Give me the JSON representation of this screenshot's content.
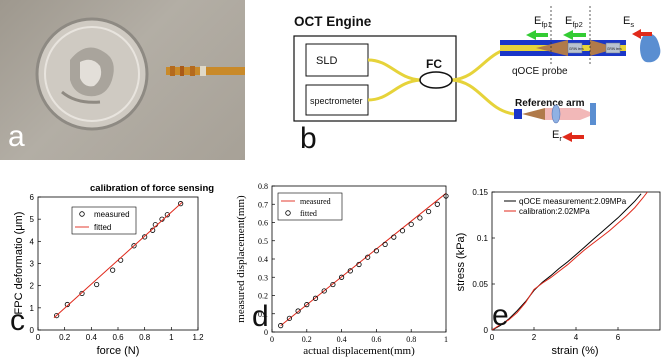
{
  "panels": {
    "a": {
      "letter": "a"
    },
    "b": {
      "letter": "b",
      "engine_title": "OCT Engine",
      "sld_label": "SLD",
      "spectrometer_label": "spectrometer",
      "coupler_label": "FC",
      "probe_label": "qOCE probe",
      "reference_label": "Reference arm",
      "field_fp1_main": "E",
      "field_fp1_sub": "fp1",
      "field_fp2_main": "E",
      "field_fp2_sub": "fp2",
      "field_s_main": "E",
      "field_s_sub": "s",
      "field_r_main": "E",
      "field_r_sub": "r",
      "grin1_label": "GRIN lens",
      "grin2_label": "GRIN lens",
      "colors": {
        "fiber": "#e6d33a",
        "probe_blue": "#1a36c8",
        "arrow_green": "#33cc33",
        "arrow_red": "#e02a1a",
        "cone": "#b07a4a",
        "sample": "#5a8ed1",
        "lens": "#8fb1e3",
        "ref_beam": "#f2b8b8"
      }
    },
    "c": {
      "letter": "c",
      "title": "calibration of force sensing"
    },
    "d": {
      "letter": "d"
    },
    "e": {
      "letter": "e"
    }
  },
  "chart_data": [
    {
      "type": "scatter",
      "title": "calibration of force sensing",
      "xlabel": "force (N)",
      "ylabel": "FPC deformatio (μm)",
      "xlim": [
        0,
        1.2
      ],
      "ylim": [
        0,
        6
      ],
      "xticks": [
        "0",
        "0.2",
        "0.4",
        "0.6",
        "0.8",
        "1",
        "1.2"
      ],
      "yticks": [
        "0",
        "1",
        "2",
        "3",
        "4",
        "5",
        "6"
      ],
      "legend_position": "top-left",
      "series": [
        {
          "name": "measured",
          "style": "marker",
          "color": "#000000",
          "x": [
            0.14,
            0.22,
            0.33,
            0.44,
            0.56,
            0.62,
            0.72,
            0.8,
            0.86,
            0.88,
            0.93,
            0.97,
            1.07
          ],
          "y": [
            0.65,
            1.15,
            1.65,
            2.05,
            2.7,
            3.15,
            3.8,
            4.2,
            4.5,
            4.75,
            5.0,
            5.2,
            5.7
          ]
        },
        {
          "name": "fitted",
          "style": "line",
          "color": "#e0291b",
          "x": [
            0.12,
            1.08
          ],
          "y": [
            0.55,
            5.75
          ]
        }
      ]
    },
    {
      "type": "scatter",
      "xlabel": "actual displacement(mm)",
      "ylabel": "measured displacement(mm)",
      "xlim": [
        0,
        1
      ],
      "ylim": [
        0,
        0.8
      ],
      "xticks": [
        "0",
        "0.2",
        "0.4",
        "0.6",
        "0.8",
        "1"
      ],
      "yticks": [
        "0",
        "0.1",
        "0.2",
        "0.3",
        "0.4",
        "0.5",
        "0.6",
        "0.7",
        "0.8"
      ],
      "legend_position": "top-left",
      "series": [
        {
          "name": "measured",
          "style": "line",
          "color": "#e0291b",
          "x": [
            0.05,
            1.0
          ],
          "y": [
            0.035,
            0.76
          ]
        },
        {
          "name": "fitted",
          "style": "marker",
          "color": "#000000",
          "x": [
            0.05,
            0.1,
            0.15,
            0.2,
            0.25,
            0.3,
            0.35,
            0.4,
            0.45,
            0.5,
            0.55,
            0.6,
            0.65,
            0.7,
            0.75,
            0.8,
            0.85,
            0.9,
            0.95,
            1.0
          ],
          "y": [
            0.035,
            0.075,
            0.115,
            0.15,
            0.185,
            0.225,
            0.26,
            0.3,
            0.335,
            0.37,
            0.41,
            0.445,
            0.48,
            0.52,
            0.555,
            0.59,
            0.625,
            0.66,
            0.7,
            0.745
          ]
        }
      ]
    },
    {
      "type": "line",
      "xlabel": "strain (%)",
      "ylabel": "stress (kPa)",
      "xlim": [
        0,
        8
      ],
      "ylim": [
        0,
        0.15
      ],
      "xticks": [
        "0",
        "2",
        "4",
        "6"
      ],
      "yticks": [
        "0",
        "0.05",
        "0.1",
        "0.15"
      ],
      "legend_position": "top-right",
      "series": [
        {
          "name": "qOCE measurement:2.09MPa",
          "color": "#000000",
          "x": [
            0,
            0.4,
            0.8,
            1.2,
            1.6,
            2.0,
            2.4,
            2.8,
            3.2,
            3.6,
            4.0,
            4.4,
            4.8,
            5.2,
            5.6,
            6.0,
            6.4,
            6.8,
            7.1
          ],
          "y": [
            0,
            0.005,
            0.012,
            0.021,
            0.031,
            0.043,
            0.052,
            0.059,
            0.067,
            0.074,
            0.082,
            0.09,
            0.098,
            0.106,
            0.114,
            0.122,
            0.131,
            0.14,
            0.148
          ]
        },
        {
          "name": "calibration:2.02MPa",
          "color": "#e0291b",
          "x": [
            0,
            0.4,
            0.8,
            1.2,
            1.6,
            2.0,
            2.4,
            2.8,
            3.2,
            3.6,
            4.0,
            4.4,
            4.8,
            5.2,
            5.6,
            6.0,
            6.4,
            6.8,
            7.2,
            7.4
          ],
          "y": [
            0,
            0.006,
            0.011,
            0.019,
            0.03,
            0.044,
            0.051,
            0.057,
            0.064,
            0.071,
            0.079,
            0.087,
            0.094,
            0.101,
            0.108,
            0.116,
            0.124,
            0.133,
            0.144,
            0.15
          ]
        }
      ]
    }
  ]
}
